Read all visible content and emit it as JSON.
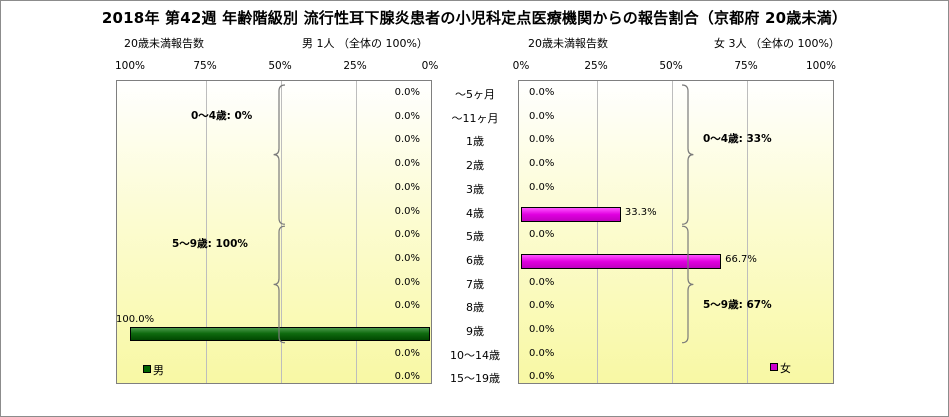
{
  "title": "2018年 第42週 年齢階級別 流行性耳下腺炎患者の小児科定点医療機関からの報告割合（京都府 20歳未満）",
  "male": {
    "header_left": "20歳未満報告数",
    "header_right": "男 1人 （全体の 100%）",
    "legend": "男",
    "color": "#006600",
    "groups": [
      {
        "label": "0～4歳: 0%"
      },
      {
        "label": "5～9歳: 100%"
      }
    ]
  },
  "female": {
    "header_left": "20歳未満報告数",
    "header_right": "女 3人 （全体の 100%）",
    "legend": "女",
    "color": "#cc00cc",
    "groups": [
      {
        "label": "0～4歳: 33%"
      },
      {
        "label": "5～9歳: 67%"
      }
    ]
  },
  "chart_data": {
    "type": "bar",
    "orientation": "horizontal",
    "categories": [
      "～5ヶ月",
      "～11ヶ月",
      "1歳",
      "2歳",
      "3歳",
      "4歳",
      "5歳",
      "6歳",
      "7歳",
      "8歳",
      "9歳",
      "10～14歳",
      "15～19歳"
    ],
    "male": {
      "name": "男",
      "values": [
        0,
        0,
        0,
        0,
        0,
        0,
        0,
        0,
        0,
        0,
        100,
        0,
        0
      ],
      "labels": [
        "0.0%",
        "0.0%",
        "0.0%",
        "0.0%",
        "0.0%",
        "0.0%",
        "0.0%",
        "0.0%",
        "0.0%",
        "0.0%",
        "100.0%",
        "0.0%",
        "0.0%"
      ],
      "ticks": [
        "100%",
        "75%",
        "50%",
        "25%",
        "0%"
      ],
      "xlim": [
        0,
        100
      ],
      "axis_direction": "reversed"
    },
    "female": {
      "name": "女",
      "values": [
        0,
        0,
        0,
        0,
        0,
        33.3,
        0,
        66.7,
        0,
        0,
        0,
        0,
        0
      ],
      "labels": [
        "0.0%",
        "0.0%",
        "0.0%",
        "0.0%",
        "0.0%",
        "33.3%",
        "0.0%",
        "66.7%",
        "0.0%",
        "0.0%",
        "0.0%",
        "0.0%",
        "0.0%"
      ],
      "ticks": [
        "0%",
        "25%",
        "50%",
        "75%",
        "100%"
      ],
      "xlim": [
        0,
        100
      ]
    },
    "grid": true,
    "legend_position": "bottom-left / bottom-right"
  }
}
